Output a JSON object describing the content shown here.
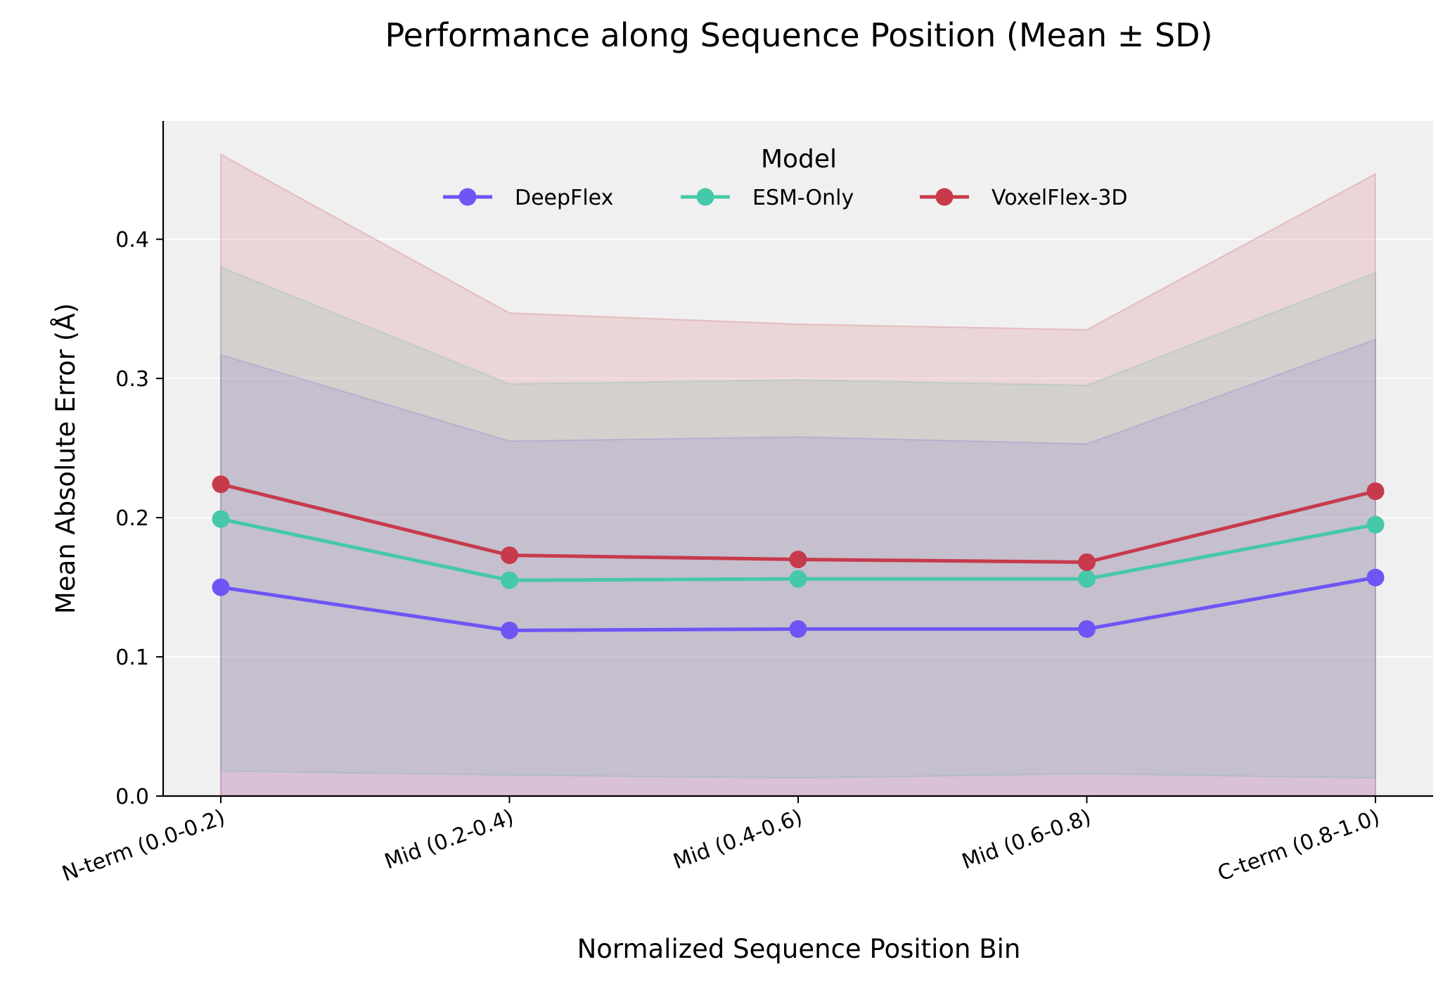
{
  "chart_data": {
    "type": "line",
    "title": "Performance along Sequence Position (Mean ± SD)",
    "xlabel": "Normalized Sequence Position Bin",
    "ylabel": "Mean Absolute Error (Å)",
    "categories": [
      "N-term (0.0-0.2)",
      "Mid (0.2-0.4)",
      "Mid (0.4-0.6)",
      "Mid (0.6-0.8)",
      "C-term (0.8-1.0)"
    ],
    "ylim": [
      0,
      0.485
    ],
    "yticks": [
      0.0,
      0.1,
      0.2,
      0.3,
      0.4
    ],
    "ytick_labels": [
      "0.0",
      "0.1",
      "0.2",
      "0.3",
      "0.4"
    ],
    "grid": "horizontal",
    "legend": {
      "title": "Model",
      "placement": "top-center"
    },
    "series": [
      {
        "name": "DeepFlex",
        "color": "#6e55f5",
        "values": [
          0.15,
          0.119,
          0.12,
          0.12,
          0.157
        ],
        "lower": [
          0.0,
          0.0,
          0.0,
          0.0,
          0.0
        ],
        "upper": [
          0.317,
          0.255,
          0.258,
          0.253,
          0.328
        ]
      },
      {
        "name": "ESM-Only",
        "color": "#45c9a8",
        "values": [
          0.199,
          0.155,
          0.156,
          0.156,
          0.195
        ],
        "lower": [
          0.018,
          0.015,
          0.013,
          0.016,
          0.013
        ],
        "upper": [
          0.38,
          0.296,
          0.299,
          0.295,
          0.376
        ]
      },
      {
        "name": "VoxelFlex-3D",
        "color": "#c73a4b",
        "values": [
          0.224,
          0.173,
          0.17,
          0.168,
          0.219
        ],
        "lower": [
          0.0,
          0.0,
          0.0,
          0.0,
          0.0
        ],
        "upper": [
          0.461,
          0.347,
          0.339,
          0.335,
          0.447
        ]
      }
    ]
  }
}
